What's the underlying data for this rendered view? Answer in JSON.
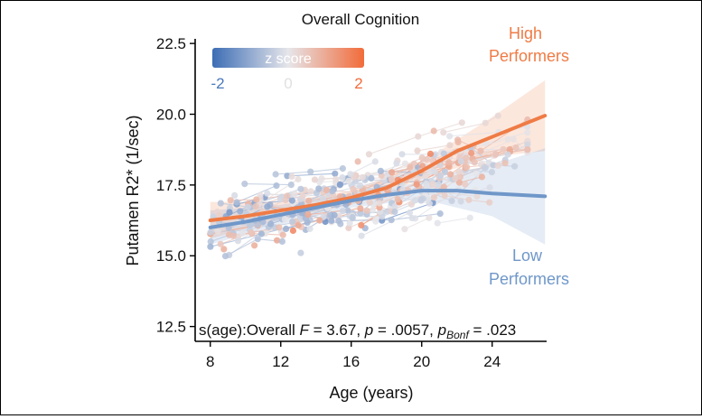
{
  "chart_data": {
    "type": "scatter",
    "title": "Overall Cognition",
    "xlabel": "Age (years)",
    "ylabel": "Putamen R2* (1/sec)",
    "xlim": [
      7.5,
      27.5
    ],
    "ylim": [
      12.2,
      22.6
    ],
    "xticks": [
      8,
      12,
      16,
      20,
      24
    ],
    "yticks": [
      12.5,
      15.0,
      17.5,
      20.0,
      22.5
    ],
    "ytick_labels": [
      "12.5",
      "15.0",
      "17.5",
      "20.0",
      "22.5"
    ],
    "legend": {
      "title": "z score",
      "tick_labels": [
        "-2",
        "0",
        "2"
      ],
      "tick_values": [
        -2,
        0,
        2
      ],
      "colors": [
        "#3d6db5",
        "#e6e6ea",
        "#f26b3a"
      ],
      "placement": "top-left"
    },
    "series": [
      {
        "name": "High Performers",
        "label_lines": [
          "High",
          "Performers"
        ],
        "color": "#ef7b45",
        "fit": [
          [
            8,
            16.25
          ],
          [
            10,
            16.4
          ],
          [
            12,
            16.6
          ],
          [
            14,
            16.8
          ],
          [
            16,
            17.05
          ],
          [
            18,
            17.4
          ],
          [
            20,
            18.0
          ],
          [
            22,
            18.7
          ],
          [
            24,
            19.2
          ],
          [
            27,
            19.95
          ]
        ],
        "ci_upper": [
          [
            8,
            16.9
          ],
          [
            12,
            16.9
          ],
          [
            16,
            17.3
          ],
          [
            20,
            18.3
          ],
          [
            24,
            19.9
          ],
          [
            27,
            21.2
          ]
        ],
        "ci_lower": [
          [
            8,
            15.6
          ],
          [
            12,
            16.3
          ],
          [
            16,
            16.8
          ],
          [
            20,
            17.7
          ],
          [
            24,
            18.5
          ],
          [
            27,
            18.7
          ]
        ]
      },
      {
        "name": "Low Performers",
        "label_lines": [
          "Low",
          "Performers"
        ],
        "color": "#6f97c9",
        "fit": [
          [
            8,
            16.0
          ],
          [
            10,
            16.2
          ],
          [
            12,
            16.45
          ],
          [
            14,
            16.7
          ],
          [
            16,
            16.95
          ],
          [
            18,
            17.15
          ],
          [
            20,
            17.3
          ],
          [
            22,
            17.3
          ],
          [
            24,
            17.2
          ],
          [
            27,
            17.1
          ]
        ],
        "ci_upper": [
          [
            8,
            16.6
          ],
          [
            12,
            16.8
          ],
          [
            16,
            17.2
          ],
          [
            20,
            17.6
          ],
          [
            24,
            18.2
          ],
          [
            27,
            18.8
          ]
        ],
        "ci_lower": [
          [
            8,
            15.4
          ],
          [
            12,
            16.1
          ],
          [
            16,
            16.7
          ],
          [
            20,
            17.0
          ],
          [
            24,
            16.4
          ],
          [
            27,
            15.4
          ]
        ]
      }
    ],
    "annotation": {
      "pre": "s(age):Overall ",
      "F_sym": "F",
      "F_val": " = 3.67, ",
      "p_sym": "p",
      "p_val": " = .0057, ",
      "pb_sym": "p",
      "pb_sub": "Bonf",
      "pb_val": " = .023"
    },
    "point_cloud": {
      "n_subjects": 230,
      "seed": 7,
      "age_range": [
        8,
        26
      ],
      "visits_range": [
        1,
        3
      ],
      "note_z_range": [
        -2,
        2
      ]
    }
  }
}
